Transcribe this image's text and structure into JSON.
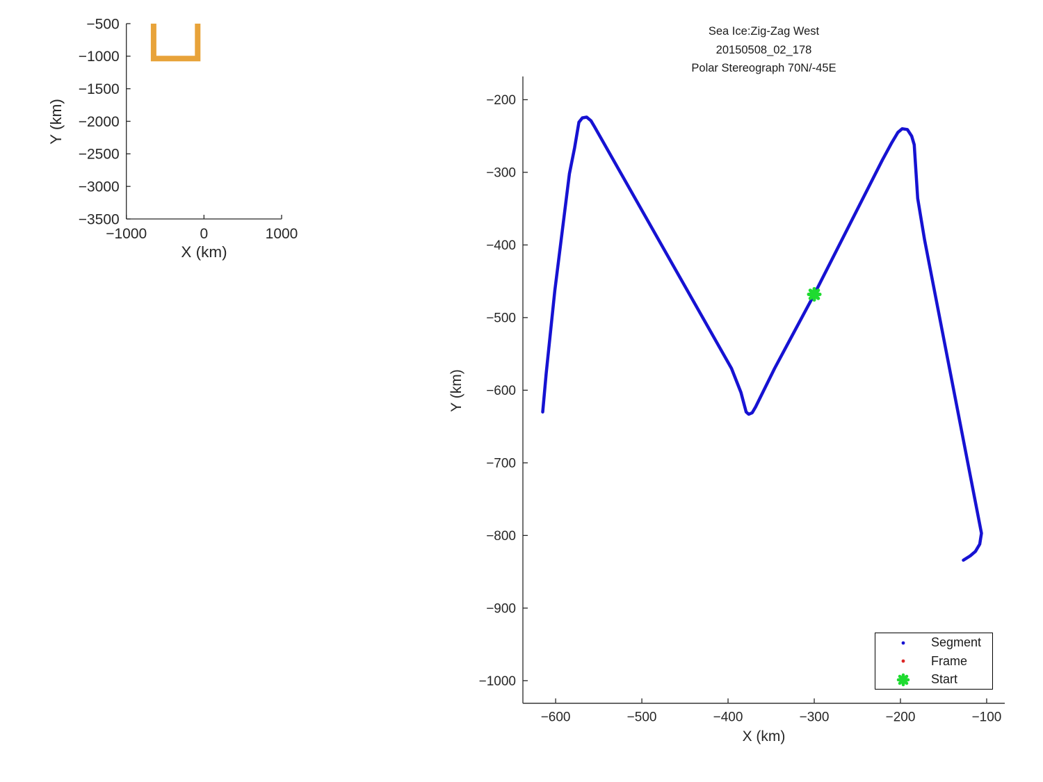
{
  "figure": {
    "background": "#ffffff",
    "text_color": "#262626"
  },
  "chart_data": [
    {
      "id": "overview",
      "type": "line",
      "xlabel": "X (km)",
      "ylabel": "Y (km)",
      "xlim": [
        -1000,
        1000
      ],
      "ylim": [
        -3500,
        -500
      ],
      "x_ticks": [
        -1000,
        0,
        1000
      ],
      "y_ticks": [
        -500,
        -1000,
        -1500,
        -2000,
        -2500,
        -3000,
        -3500
      ],
      "grid": false,
      "legend": null,
      "series": [
        {
          "name": "region-outline",
          "color": "#E8A33A",
          "linewidth": 8,
          "points": [
            [
              -649,
              -500
            ],
            [
              -649,
              -1036
            ],
            [
              -81,
              -1036
            ],
            [
              -81,
              -500
            ]
          ]
        }
      ]
    },
    {
      "id": "main",
      "type": "line",
      "title": "Sea Ice:Zig-Zag West",
      "title_line2": "20150508_02_178",
      "title_line3": "Polar Stereograph 70N/-45E",
      "xlabel": "X (km)",
      "ylabel": "Y (km)",
      "xlim": [
        -638,
        -79
      ],
      "ylim": [
        -1031,
        -168
      ],
      "x_ticks": [
        -600,
        -500,
        -400,
        -300,
        -200,
        -100
      ],
      "y_ticks": [
        -200,
        -300,
        -400,
        -500,
        -600,
        -700,
        -800,
        -900,
        -1000
      ],
      "grid": false,
      "legend": {
        "position": "lower-right",
        "items": [
          {
            "label": "Segment",
            "marker": "dot",
            "color": "#1612D2"
          },
          {
            "label": "Frame",
            "marker": "dot",
            "color": "#DC2626"
          },
          {
            "label": "Start",
            "marker": "asterisk",
            "color": "#1EDB30"
          }
        ]
      },
      "series": [
        {
          "name": "Segment",
          "color": "#1612D2",
          "linewidth": 4.5,
          "points": [
            [
              -615,
              -630
            ],
            [
              -611,
              -577
            ],
            [
              -601,
              -463
            ],
            [
              -584,
              -302
            ],
            [
              -578,
              -266
            ],
            [
              -573,
              -231
            ],
            [
              -569,
              -225
            ],
            [
              -564,
              -224
            ],
            [
              -559,
              -229
            ],
            [
              -555,
              -237
            ],
            [
              -396,
              -570
            ],
            [
              -385,
              -603
            ],
            [
              -381,
              -621
            ],
            [
              -379,
              -630
            ],
            [
              -376,
              -633
            ],
            [
              -372,
              -631
            ],
            [
              -368,
              -623
            ],
            [
              -346,
              -570
            ],
            [
              -300,
              -468
            ],
            [
              -221,
              -283
            ],
            [
              -210,
              -259
            ],
            [
              -203,
              -245
            ],
            [
              -198,
              -240
            ],
            [
              -192,
              -241
            ],
            [
              -187,
              -250
            ],
            [
              -184,
              -262
            ],
            [
              -180,
              -336
            ],
            [
              -172,
              -393
            ],
            [
              -106,
              -797
            ],
            [
              -108,
              -812
            ],
            [
              -113,
              -822
            ],
            [
              -119,
              -828
            ],
            [
              -127,
              -834
            ]
          ]
        },
        {
          "name": "Frame",
          "color": "#DC2626",
          "linewidth": 1,
          "points": []
        },
        {
          "name": "Start",
          "color": "#1EDB30",
          "marker": "asterisk",
          "marker_size": 16,
          "points": [
            [
              -300,
              -468
            ]
          ]
        }
      ]
    }
  ]
}
